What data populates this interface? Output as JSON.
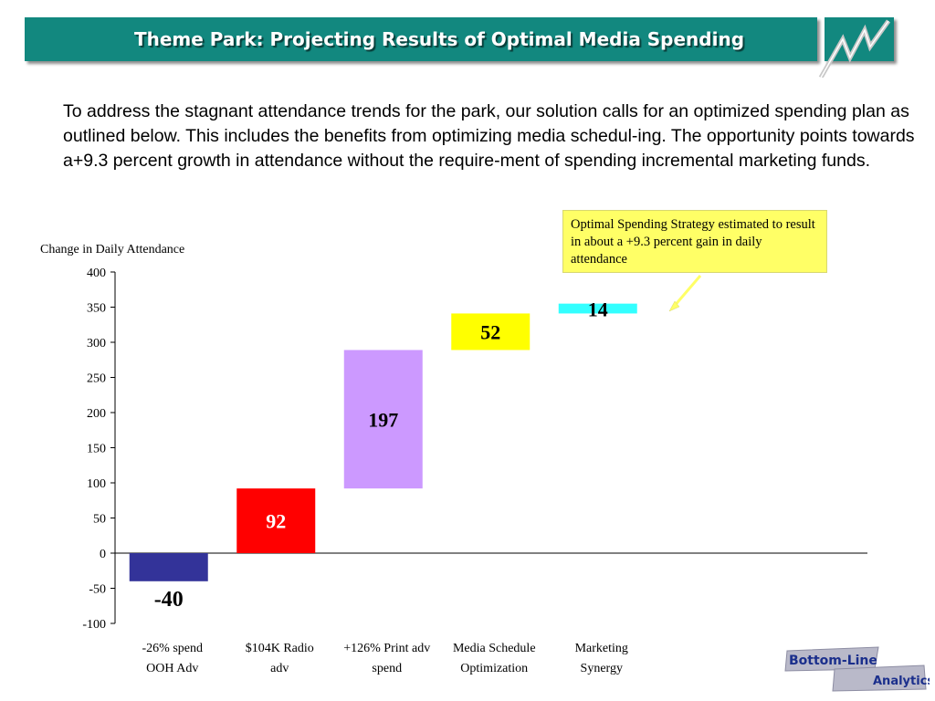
{
  "header": {
    "title": "Theme Park:  Projecting Results of Optimal Media Spending"
  },
  "intro": {
    "text": "To address the stagnant attendance trends for the park, our solution calls for an optimized spending plan as outlined below.  This includes the benefits from optimizing media schedul-ing.   The opportunity points towards a+9.3 percent growth in attendance without the require-ment of spending incremental marketing funds."
  },
  "callout": {
    "text": "Optimal Spending Strategy estimated to result in about a +9.3 percent gain in daily attendance"
  },
  "brand": {
    "line1": "Bottom-Line",
    "line2": "Analytics"
  },
  "colors": {
    "title_bar": "#12887f",
    "bar_ooh": "#333399",
    "bar_radio": "#ff0000",
    "bar_print": "#cc99ff",
    "bar_media": "#ffff00",
    "bar_synergy": "#33ffff",
    "callout_bg": "#ffff66"
  },
  "chart_data": {
    "type": "bar",
    "subtype": "waterfall",
    "ylabel": "Change in Daily Attendance",
    "ylim": [
      -100,
      400
    ],
    "yticks": [
      400,
      350,
      300,
      250,
      200,
      150,
      100,
      50,
      0,
      -50,
      -100
    ],
    "categories": [
      [
        "-26% spend",
        "OOH Adv"
      ],
      [
        "$104K Radio",
        "adv"
      ],
      [
        "+126% Print adv",
        "spend"
      ],
      [
        "Media Schedule",
        "Optimization"
      ],
      [
        "Marketing",
        "Synergy"
      ]
    ],
    "values": [
      -40,
      92,
      197,
      52,
      14
    ],
    "bases": [
      0,
      0,
      92,
      289,
      341
    ],
    "data_labels": [
      "-40",
      "92",
      "197",
      "52",
      "14"
    ],
    "bar_colors": [
      "#333399",
      "#ff0000",
      "#cc99ff",
      "#ffff00",
      "#33ffff"
    ],
    "label_colors": [
      "#000000",
      "#ffffff",
      "#000000",
      "#000000",
      "#000000"
    ]
  }
}
